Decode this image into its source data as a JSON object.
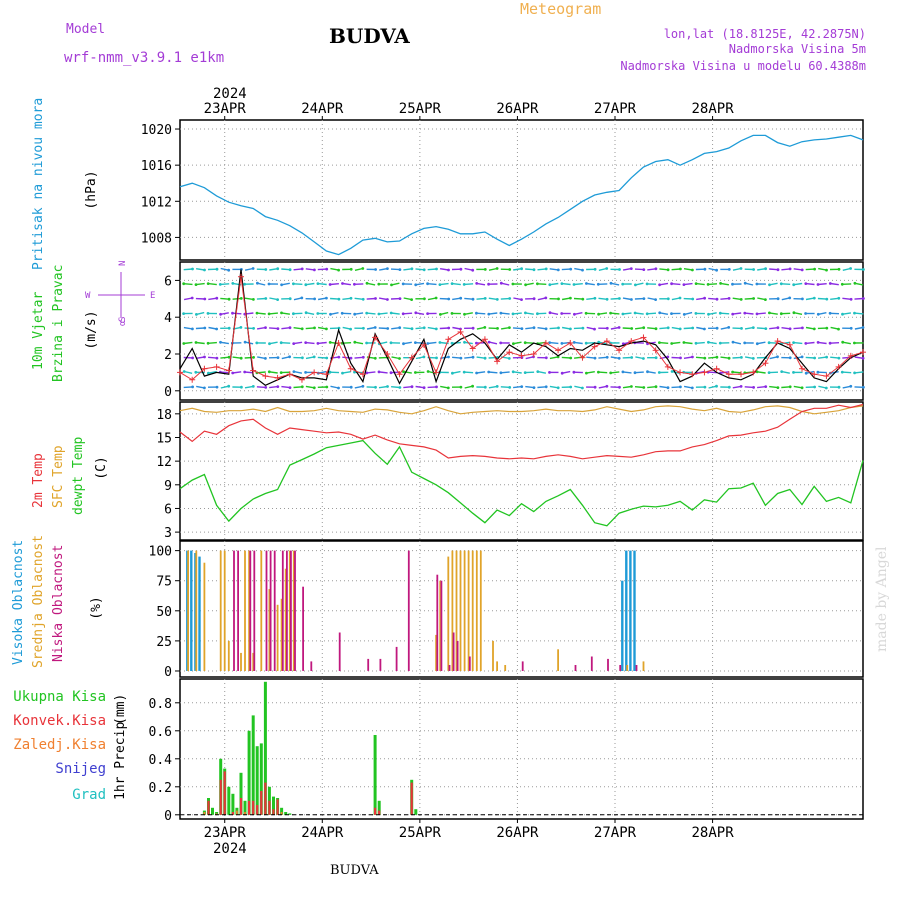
{
  "header": {
    "model_label": "Model",
    "model_value": "wrf-nmm_v3.9.1  e1km",
    "title": "BUDVA",
    "meteogram": "Meteogram",
    "lonlat": "lon,lat (18.8125E, 42.2875N)",
    "altitude": "Nadmorska Visina 5m",
    "model_altitude": "Nadmorska Visina u modelu 60.4388m",
    "footer": "BUDVA",
    "watermark": "made by Angel"
  },
  "colors": {
    "pressure": "#1e9bd7",
    "wind_speed": "#000000",
    "gust": "#e8343a",
    "temp2m": "#e8343a",
    "sfc_temp": "#d9a43a",
    "dewpt": "#22c422",
    "cloud_high": "#1e9bd7",
    "cloud_mid": "#e0a42a",
    "cloud_low": "#c0187e",
    "precip_total": "#22c422",
    "precip_conv": "#e8343a",
    "precip_frozen": "#f08030",
    "precip_snow": "#4040d0",
    "precip_graupel": "#20c0c0",
    "header_purple": "#a43cd6",
    "header_orange": "#f0b050"
  },
  "chart_data": [
    {
      "id": "pressure",
      "type": "line",
      "ylabel_main": "Pritisak na nivou mora",
      "ylabel_unit": "(hPa)",
      "yticks": [
        1008,
        1012,
        1016,
        1020
      ],
      "ylim": [
        1005.5,
        1021
      ],
      "top_axis": {
        "year": "2024",
        "dates": [
          "23APR",
          "24APR",
          "25APR",
          "26APR",
          "27APR",
          "28APR"
        ]
      },
      "x": [
        0,
        3,
        6,
        9,
        12,
        15,
        18,
        21,
        24,
        27,
        30,
        33,
        36,
        39,
        42,
        45,
        48,
        51,
        54,
        57,
        60,
        63,
        66,
        69,
        72,
        75,
        78,
        81,
        84,
        87,
        90,
        93,
        96,
        99,
        102,
        105,
        108,
        111,
        114,
        117,
        120,
        123,
        126,
        129,
        132,
        135,
        138,
        141,
        144,
        147,
        150,
        153,
        156,
        159,
        162,
        165,
        168
      ],
      "series": [
        {
          "values": [
            1013.6,
            1014.0,
            1013.5,
            1012.6,
            1011.9,
            1011.5,
            1011.2,
            1010.3,
            1009.9,
            1009.3,
            1008.5,
            1007.5,
            1006.5,
            1006.1,
            1006.8,
            1007.7,
            1007.9,
            1007.5,
            1007.6,
            1008.4,
            1009.0,
            1009.2,
            1008.9,
            1008.4,
            1008.4,
            1008.6,
            1007.8,
            1007.1,
            1007.8,
            1008.6,
            1009.5,
            1010.2,
            1011.1,
            1012.0,
            1012.7,
            1013.0,
            1013.2,
            1014.6,
            1015.8,
            1016.4,
            1016.6,
            1016.0,
            1016.6,
            1017.3,
            1017.5,
            1017.9,
            1018.7,
            1019.3,
            1019.3,
            1018.5,
            1018.1,
            1018.6,
            1018.8,
            1018.9,
            1019.1,
            1019.3,
            1018.8
          ]
        }
      ]
    },
    {
      "id": "wind",
      "type": "line",
      "ylabel_main": "10m Vjetar",
      "ylabel_sub": "Brzina i Pravac",
      "ylabel_unit": "(m/s)",
      "compass": {
        "n": "N",
        "s": "S",
        "e": "E",
        "w": "W",
        "alpha": "α"
      },
      "yticks": [
        0,
        2,
        4,
        6
      ],
      "ylim": [
        -0.5,
        7
      ],
      "x": [
        0,
        3,
        6,
        9,
        12,
        15,
        18,
        21,
        24,
        27,
        30,
        33,
        36,
        39,
        42,
        45,
        48,
        51,
        54,
        57,
        60,
        63,
        66,
        69,
        72,
        75,
        78,
        81,
        84,
        87,
        90,
        93,
        96,
        99,
        102,
        105,
        108,
        111,
        114,
        117,
        120,
        123,
        126,
        129,
        132,
        135,
        138,
        141,
        144,
        147,
        150,
        153,
        156,
        159,
        162,
        165,
        168
      ],
      "series": [
        {
          "values": [
            1.2,
            2.3,
            0.8,
            1.0,
            0.9,
            6.6,
            0.8,
            0.3,
            0.6,
            0.9,
            0.7,
            0.7,
            0.6,
            3.3,
            1.5,
            0.5,
            3.1,
            1.8,
            0.4,
            1.6,
            2.8,
            0.5,
            2.3,
            2.8,
            3.1,
            2.6,
            1.7,
            2.5,
            2.1,
            2.6,
            2.4,
            1.9,
            2.3,
            2.2,
            2.6,
            2.5,
            2.4,
            2.6,
            2.7,
            2.5,
            1.7,
            0.5,
            0.8,
            1.5,
            1.0,
            0.7,
            0.6,
            0.9,
            1.8,
            2.6,
            2.3,
            1.5,
            0.7,
            0.5,
            1.2,
            1.8,
            2.1
          ]
        },
        {
          "values": [
            1.0,
            0.6,
            1.2,
            1.3,
            1.1,
            6.2,
            1.1,
            0.8,
            0.7,
            0.9,
            0.6,
            1.0,
            0.9,
            2.6,
            1.2,
            0.9,
            2.9,
            2.0,
            0.9,
            1.8,
            2.5,
            1.0,
            2.8,
            3.2,
            2.3,
            2.8,
            1.6,
            2.1,
            1.9,
            2.0,
            2.6,
            2.2,
            2.6,
            1.8,
            2.4,
            2.7,
            2.2,
            2.7,
            2.9,
            2.2,
            1.3,
            1.0,
            0.9,
            1.0,
            1.2,
            0.9,
            0.9,
            1.0,
            1.5,
            2.7,
            2.5,
            1.2,
            0.9,
            0.8,
            1.3,
            1.9,
            2.1
          ]
        }
      ]
    },
    {
      "id": "temp",
      "type": "line",
      "ylabel_main": "2m Temp",
      "ylabel_sub": "SFC Temp",
      "ylabel_sub2": "dewpt Temp",
      "ylabel_unit": "(C)",
      "yticks": [
        3,
        6,
        9,
        12,
        15,
        18
      ],
      "ylim": [
        2,
        19.5
      ],
      "x": [
        0,
        3,
        6,
        9,
        12,
        15,
        18,
        21,
        24,
        27,
        30,
        33,
        36,
        39,
        42,
        45,
        48,
        51,
        54,
        57,
        60,
        63,
        66,
        69,
        72,
        75,
        78,
        81,
        84,
        87,
        90,
        93,
        96,
        99,
        102,
        105,
        108,
        111,
        114,
        117,
        120,
        123,
        126,
        129,
        132,
        135,
        138,
        141,
        144,
        147,
        150,
        153,
        156,
        159,
        162,
        165,
        168
      ],
      "series": [
        {
          "values": [
            15.7,
            14.5,
            15.8,
            15.4,
            16.5,
            17.1,
            17.3,
            16.2,
            15.4,
            16.2,
            16.0,
            15.8,
            15.6,
            15.7,
            15.4,
            14.8,
            15.3,
            14.7,
            14.2,
            14.0,
            13.8,
            13.4,
            12.4,
            12.6,
            12.7,
            12.6,
            12.4,
            12.3,
            12.4,
            12.3,
            12.6,
            12.8,
            12.6,
            12.3,
            12.5,
            12.7,
            12.6,
            12.5,
            12.8,
            13.2,
            13.3,
            13.3,
            13.8,
            14.1,
            14.6,
            15.2,
            15.3,
            15.6,
            15.8,
            16.3,
            17.3,
            18.3,
            18.7,
            18.7,
            19.1,
            18.8,
            19.2
          ]
        },
        {
          "values": [
            18.4,
            18.7,
            18.3,
            18.2,
            18.4,
            18.4,
            18.6,
            18.3,
            18.8,
            18.3,
            18.3,
            18.4,
            18.7,
            18.4,
            18.3,
            18.2,
            18.6,
            18.5,
            18.2,
            18.0,
            18.4,
            18.9,
            18.4,
            18.0,
            18.2,
            18.3,
            18.4,
            18.3,
            18.3,
            18.4,
            18.6,
            18.4,
            18.4,
            18.3,
            18.5,
            18.9,
            18.6,
            18.3,
            18.5,
            18.9,
            19.0,
            18.9,
            18.6,
            18.4,
            18.7,
            18.3,
            18.2,
            18.5,
            18.9,
            19.0,
            18.8,
            18.3,
            18.0,
            18.2,
            18.4,
            18.8,
            19.0
          ]
        },
        {
          "values": [
            8.5,
            9.6,
            10.3,
            6.4,
            4.4,
            6.0,
            7.2,
            7.9,
            8.4,
            11.5,
            12.2,
            12.9,
            13.7,
            14.0,
            14.3,
            14.6,
            13.0,
            11.6,
            13.8,
            10.6,
            9.8,
            9.0,
            8.0,
            6.7,
            5.4,
            4.2,
            5.8,
            5.1,
            6.6,
            5.6,
            6.9,
            7.6,
            8.4,
            6.4,
            4.2,
            3.8,
            5.4,
            5.9,
            6.3,
            6.2,
            6.4,
            6.9,
            5.8,
            7.1,
            6.8,
            8.5,
            8.6,
            9.2,
            6.4,
            7.9,
            8.4,
            6.5,
            8.8,
            6.9,
            7.4,
            6.7,
            12.1
          ]
        }
      ]
    },
    {
      "id": "clouds",
      "type": "bar",
      "ylabel_main": "Visoka Oblacnost",
      "ylabel_sub": "Srednja Oblacnost",
      "ylabel_sub2": "Niska Oblacnost",
      "ylabel_unit": "(%)",
      "yticks": [
        0,
        25,
        50,
        75,
        100
      ],
      "ylim": [
        -5,
        108
      ],
      "series": [
        {
          "name": "high",
          "x": [
            2,
            3,
            4,
            5,
            109,
            110,
            111,
            112
          ],
          "values": [
            100,
            100,
            98,
            95,
            75,
            100,
            100,
            100
          ]
        },
        {
          "name": "mid",
          "x": [
            2,
            4,
            6,
            10,
            11,
            12,
            15,
            16,
            17,
            18,
            20,
            22,
            24,
            25,
            26,
            27,
            28,
            63,
            64,
            66,
            67,
            68,
            69,
            70,
            71,
            72,
            73,
            74,
            77,
            78,
            80,
            93,
            110,
            114
          ],
          "values": [
            100,
            100,
            90,
            100,
            100,
            25,
            15,
            100,
            100,
            15,
            100,
            68,
            55,
            60,
            85,
            100,
            100,
            30,
            75,
            95,
            100,
            100,
            100,
            100,
            100,
            100,
            100,
            100,
            25,
            8,
            5,
            18,
            5,
            8
          ]
        },
        {
          "name": "low",
          "x": [
            13,
            14,
            17,
            18,
            21,
            22,
            23,
            25,
            26,
            27,
            28,
            30,
            32,
            39,
            46,
            49,
            53,
            56,
            63,
            64,
            66,
            67,
            68,
            71,
            84,
            97,
            101,
            105,
            108,
            112
          ],
          "values": [
            100,
            100,
            100,
            100,
            100,
            100,
            100,
            100,
            100,
            100,
            100,
            70,
            8,
            32,
            10,
            10,
            20,
            100,
            80,
            75,
            5,
            32,
            25,
            12,
            8,
            5,
            12,
            10,
            5,
            5
          ]
        }
      ]
    },
    {
      "id": "precip",
      "type": "bar",
      "legend": [
        "Ukupna Kisa",
        "Konvek.Kisa",
        "Zaledj.Kisa",
        "Snijeg",
        "Grad"
      ],
      "ylabel_main": "1hr Precip",
      "ylabel_unit": "(mm)",
      "yticks": [
        0,
        0.2,
        0.4,
        0.6,
        0.8
      ],
      "ylim": [
        -0.03,
        0.97
      ],
      "bottom_axis": {
        "year": "2024",
        "dates": [
          "23APR",
          "24APR",
          "25APR",
          "26APR",
          "27APR",
          "28APR"
        ]
      },
      "series": [
        {
          "name": "Ukupna Kisa",
          "x": [
            6,
            7,
            8,
            9,
            10,
            11,
            12,
            13,
            14,
            15,
            16,
            17,
            18,
            19,
            20,
            21,
            22,
            23,
            24,
            25,
            26,
            27,
            48,
            49,
            57,
            58
          ],
          "values": [
            0.03,
            0.12,
            0.05,
            0.02,
            0.4,
            0.33,
            0.2,
            0.15,
            0.05,
            0.3,
            0.1,
            0.6,
            0.71,
            0.49,
            0.51,
            0.95,
            0.2,
            0.13,
            0.12,
            0.05,
            0.02,
            0.01,
            0.57,
            0.1,
            0.25,
            0.04
          ]
        },
        {
          "name": "Konvek.Kisa",
          "x": [
            7,
            10,
            11,
            13,
            15,
            17,
            18,
            19,
            20,
            21,
            22,
            23,
            24,
            48,
            49,
            57
          ],
          "values": [
            0.1,
            0.25,
            0.31,
            0.02,
            0.12,
            0.1,
            0.1,
            0.07,
            0.17,
            0.23,
            0.1,
            0.04,
            0.11,
            0.05,
            0.03,
            0.23
          ]
        },
        {
          "name": "Zaledj.Kisa",
          "x": [
            6,
            9,
            14,
            16,
            25
          ],
          "values": [
            0.02,
            0.01,
            0.03,
            0.02,
            0.02
          ]
        }
      ]
    }
  ]
}
